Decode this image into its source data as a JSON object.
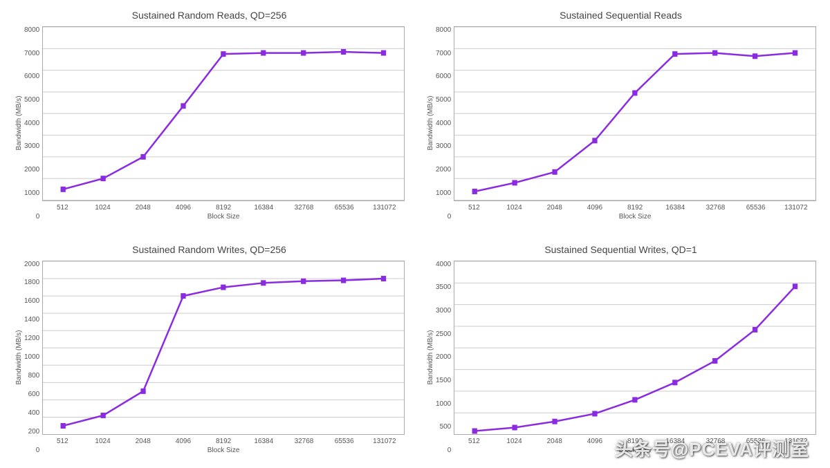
{
  "global": {
    "line_color": "#8a2be2",
    "marker_color": "#8a2be2",
    "grid_color": "#cccccc",
    "border_color": "#aaaaaa",
    "background_color": "#ffffff",
    "marker_size": 7,
    "line_width": 2.5,
    "title_fontsize": 14,
    "axis_fontsize": 10,
    "font_family": "Arial"
  },
  "watermark": "头条号@PCEVA评测室",
  "charts": [
    {
      "id": "rr",
      "type": "line",
      "title": "Sustained Random Reads, QD=256",
      "xlabel": "Block Size",
      "ylabel": "Bandwidth (MB/s)",
      "categories": [
        "512",
        "1024",
        "2048",
        "4096",
        "8192",
        "16384",
        "32768",
        "65536",
        "131072"
      ],
      "values": [
        500,
        1000,
        2000,
        4350,
        6750,
        6800,
        6800,
        6850,
        6800
      ],
      "ylim": [
        0,
        8000
      ],
      "ytick_step": 1000
    },
    {
      "id": "sr",
      "type": "line",
      "title": "Sustained Sequential Reads",
      "xlabel": "Block Size",
      "ylabel": "Bandwidth (MB/s)",
      "categories": [
        "512",
        "1024",
        "2048",
        "4096",
        "8192",
        "16384",
        "32768",
        "65536",
        "131072"
      ],
      "values": [
        400,
        800,
        1300,
        2750,
        4950,
        6750,
        6800,
        6650,
        6800
      ],
      "ylim": [
        0,
        8000
      ],
      "ytick_step": 1000
    },
    {
      "id": "rw",
      "type": "line",
      "title": "Sustained Random Writes, QD=256",
      "xlabel": "Block Size",
      "ylabel": "Bandwidth (MB/s)",
      "categories": [
        "512",
        "1024",
        "2048",
        "4096",
        "8192",
        "16384",
        "32768",
        "65536",
        "131072"
      ],
      "values": [
        100,
        220,
        500,
        1600,
        1700,
        1750,
        1770,
        1780,
        1800
      ],
      "ylim": [
        0,
        2000
      ],
      "ytick_step": 200
    },
    {
      "id": "sw",
      "type": "line",
      "title": "Sustained Sequential Writes, QD=1",
      "xlabel": "Block Size",
      "ylabel": "Bandwidth (MB/s)",
      "categories": [
        "512",
        "1024",
        "2048",
        "4096",
        "8192",
        "16384",
        "32768",
        "65536",
        "131072"
      ],
      "values": [
        80,
        160,
        300,
        480,
        800,
        1200,
        1700,
        2420,
        3420
      ],
      "ylim": [
        0,
        4000
      ],
      "ytick_step": 500
    }
  ]
}
